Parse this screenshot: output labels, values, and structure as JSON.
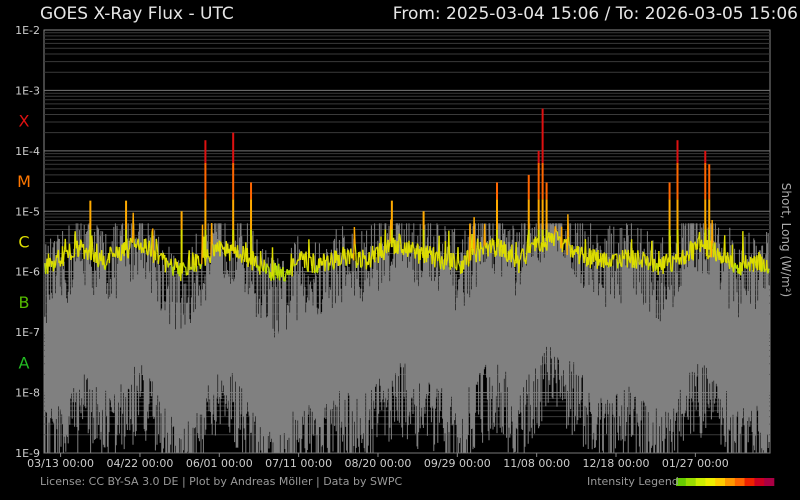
{
  "header": {
    "title": "GOES X-Ray Flux - UTC",
    "range": "From: 2025-03-04 15:06  /  To: 2026-03-05 15:06"
  },
  "footer": {
    "credits": "License: CC BY-SA 3.0 DE | Plot by Andreas Möller | Data by SWPC",
    "legend_label": "Intensity Legend",
    "legend_colors": [
      "#66cc00",
      "#99dd00",
      "#ccee00",
      "#eeee00",
      "#ffcc00",
      "#ff9900",
      "#ff6600",
      "#ee2200",
      "#cc0022",
      "#aa0044"
    ]
  },
  "chart_data": {
    "type": "line",
    "title": "GOES X-Ray Flux - UTC",
    "ylabel": "Short, Long (W/m²)",
    "yscale": "log",
    "ylim": [
      1e-09,
      0.01
    ],
    "y_ticks": [
      "1E-9",
      "1E-8",
      "1E-7",
      "1E-6",
      "1E-5",
      "1E-4",
      "1E-3",
      "1E-2"
    ],
    "y_tick_values": [
      1e-09,
      1e-08,
      1e-07,
      1e-06,
      1e-05,
      0.0001,
      0.001,
      0.01
    ],
    "flare_classes": [
      {
        "label": "A",
        "center": 3.16e-08,
        "color": "#22bb22"
      },
      {
        "label": "B",
        "center": 3.16e-07,
        "color": "#55bb00"
      },
      {
        "label": "C",
        "center": 3.16e-06,
        "color": "#dddd00"
      },
      {
        "label": "M",
        "center": 3.16e-05,
        "color": "#ff7700"
      },
      {
        "label": "X",
        "center": 0.000316,
        "color": "#dd1111"
      }
    ],
    "xlim": [
      "2025-03-04",
      "2026-03-05"
    ],
    "x_ticks": [
      "03/13 00:00",
      "04/22 00:00",
      "06/01 00:00",
      "07/11 00:00",
      "08/20 00:00",
      "09/29 00:00",
      "11/08 00:00",
      "12/18 00:00",
      "01/27 00:00"
    ],
    "x_tick_dates": [
      "2025-03-13",
      "2025-04-22",
      "2025-06-01",
      "2025-07-11",
      "2025-08-20",
      "2025-09-29",
      "2025-11-08",
      "2025-12-18",
      "2026-01-27"
    ],
    "grid": true,
    "series": [
      {
        "name": "Long",
        "color": "#ccdd00",
        "x": [
          "2025-03-04",
          "2025-03-14",
          "2025-03-24",
          "2025-04-03",
          "2025-04-13",
          "2025-04-23",
          "2025-05-03",
          "2025-05-13",
          "2025-05-23",
          "2025-06-02",
          "2025-06-12",
          "2025-06-22",
          "2025-07-02",
          "2025-07-12",
          "2025-07-22",
          "2025-08-01",
          "2025-08-11",
          "2025-08-21",
          "2025-08-31",
          "2025-09-10",
          "2025-09-20",
          "2025-09-30",
          "2025-10-10",
          "2025-10-20",
          "2025-10-30",
          "2025-11-09",
          "2025-11-19",
          "2025-11-29",
          "2025-12-09",
          "2025-12-19",
          "2025-12-29",
          "2026-01-08",
          "2026-01-18",
          "2026-01-28",
          "2026-02-07",
          "2026-02-17",
          "2026-02-27",
          "2026-03-05"
        ],
        "y": [
          1.2e-06,
          1.8e-06,
          2.5e-06,
          1.5e-06,
          2.2e-06,
          3e-06,
          1.5e-06,
          1e-06,
          1.6e-06,
          2.5e-06,
          2e-06,
          1.2e-06,
          9e-07,
          1.5e-06,
          1.3e-06,
          1.8e-06,
          1.5e-06,
          2e-06,
          3e-06,
          2e-06,
          1.6e-06,
          1.3e-06,
          2.2e-06,
          2.6e-06,
          1.4e-06,
          3e-06,
          3.5e-06,
          2e-06,
          1.5e-06,
          1.5e-06,
          1.7e-06,
          1.2e-06,
          1.6e-06,
          2.5e-06,
          2.2e-06,
          1.2e-06,
          1.5e-06,
          1.3e-06
        ]
      },
      {
        "name": "Short",
        "color": "#808080",
        "x": [
          "2025-03-04",
          "2025-03-14",
          "2025-03-24",
          "2025-04-03",
          "2025-04-13",
          "2025-04-23",
          "2025-05-03",
          "2025-05-13",
          "2025-05-23",
          "2025-06-02",
          "2025-06-12",
          "2025-06-22",
          "2025-07-02",
          "2025-07-12",
          "2025-07-22",
          "2025-08-01",
          "2025-08-11",
          "2025-08-21",
          "2025-08-31",
          "2025-09-10",
          "2025-09-20",
          "2025-09-30",
          "2025-10-10",
          "2025-10-20",
          "2025-10-30",
          "2025-11-09",
          "2025-11-19",
          "2025-11-29",
          "2025-12-09",
          "2025-12-19",
          "2025-12-29",
          "2026-01-08",
          "2026-01-18",
          "2026-01-28",
          "2026-02-07",
          "2026-02-17",
          "2026-02-27",
          "2026-03-05"
        ],
        "y": [
          2e-08,
          3e-08,
          1e-07,
          4e-08,
          6e-08,
          1.5e-07,
          3e-08,
          1e-08,
          4e-08,
          1.2e-07,
          8e-08,
          2e-08,
          1e-08,
          3e-08,
          2e-08,
          5e-08,
          3e-08,
          8e-08,
          1.5e-07,
          8e-08,
          5e-08,
          3e-08,
          1e-07,
          1.5e-07,
          4e-08,
          2e-07,
          3e-07,
          1e-07,
          4e-08,
          4e-08,
          6e-08,
          2e-08,
          5e-08,
          1.5e-07,
          1e-07,
          2e-08,
          4e-08,
          3e-08
        ]
      }
    ],
    "flare_peaks": [
      {
        "date": "2025-03-28",
        "flux": 1.5e-05
      },
      {
        "date": "2025-04-15",
        "flux": 1.5e-05
      },
      {
        "date": "2025-05-13",
        "flux": 1e-05
      },
      {
        "date": "2025-05-25",
        "flux": 0.00015
      },
      {
        "date": "2025-06-08",
        "flux": 0.0002
      },
      {
        "date": "2025-06-17",
        "flux": 3e-05
      },
      {
        "date": "2025-08-27",
        "flux": 1.5e-05
      },
      {
        "date": "2025-09-12",
        "flux": 1e-05
      },
      {
        "date": "2025-10-19",
        "flux": 3e-05
      },
      {
        "date": "2025-11-04",
        "flux": 4e-05
      },
      {
        "date": "2025-11-09",
        "flux": 0.0001
      },
      {
        "date": "2025-11-11",
        "flux": 0.0005
      },
      {
        "date": "2025-11-13",
        "flux": 3e-05
      },
      {
        "date": "2026-01-14",
        "flux": 3e-05
      },
      {
        "date": "2026-01-18",
        "flux": 0.00015
      },
      {
        "date": "2026-02-01",
        "flux": 0.0001
      },
      {
        "date": "2026-02-03",
        "flux": 6e-05
      }
    ]
  }
}
